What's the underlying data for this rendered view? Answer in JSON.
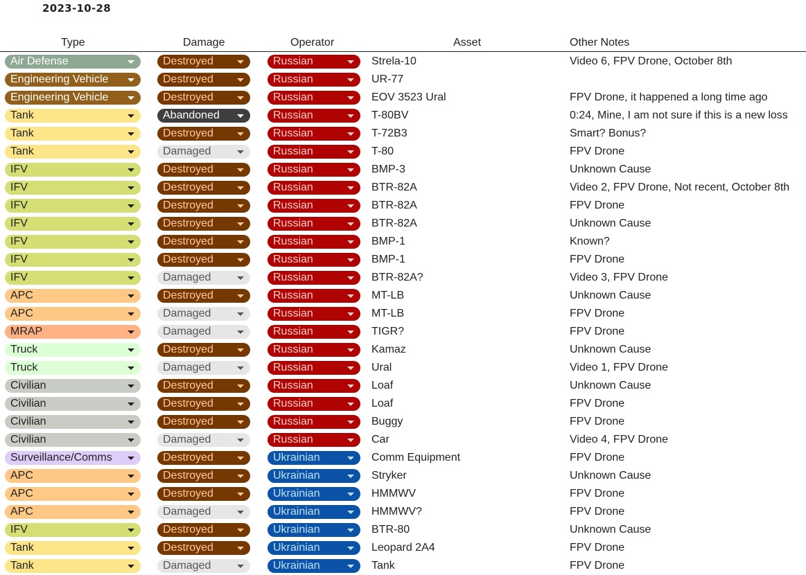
{
  "date": "2023-10-28",
  "headers": {
    "type": "Type",
    "damage": "Damage",
    "operator": "Operator",
    "asset": "Asset",
    "notes": "Other Notes"
  },
  "colors": {
    "type": {
      "Air Defense": [
        "#8fa893",
        "#ffffff"
      ],
      "Engineering Vehicle": [
        "#93601b",
        "#ffffff"
      ],
      "Tank": [
        "#fde68a",
        "#222222"
      ],
      "IFV": [
        "#d5de72",
        "#222222"
      ],
      "APC": [
        "#ffc985",
        "#222222"
      ],
      "MRAP": [
        "#ffb283",
        "#222222"
      ],
      "Truck": [
        "#dcffd6",
        "#222222"
      ],
      "Civilian": [
        "#c9ccc4",
        "#222222"
      ],
      "Surveillance/Comms": [
        "#dfcdf9",
        "#222222"
      ]
    },
    "damage": {
      "Destroyed": [
        "#753800",
        "#ffc8a3"
      ],
      "Abandoned": [
        "#3e3e3e",
        "#ffffff"
      ],
      "Damaged": [
        "#e6e6e6",
        "#555555"
      ]
    },
    "operator": {
      "Russian": [
        "#b10202",
        "#ffcfc9"
      ],
      "Ukrainian": [
        "#0a53a8",
        "#bfe1f6"
      ]
    }
  },
  "dropdown_icon": "triangle-down-icon",
  "rows": [
    {
      "type": "Air Defense",
      "damage": "Destroyed",
      "operator": "Russian",
      "asset": "Strela-10",
      "notes": "Video 6, FPV Drone, October 8th"
    },
    {
      "type": "Engineering Vehicle",
      "damage": "Destroyed",
      "operator": "Russian",
      "asset": "UR-77",
      "notes": ""
    },
    {
      "type": "Engineering Vehicle",
      "damage": "Destroyed",
      "operator": "Russian",
      "asset": "EOV 3523 Ural",
      "notes": "FPV Drone, it happened a long time ago"
    },
    {
      "type": "Tank",
      "damage": "Abandoned",
      "operator": "Russian",
      "asset": "T-80BV",
      "notes": "0:24, Mine, I am not sure if this is a new loss"
    },
    {
      "type": "Tank",
      "damage": "Destroyed",
      "operator": "Russian",
      "asset": "T-72B3",
      "notes": "Smart? Bonus?"
    },
    {
      "type": "Tank",
      "damage": "Damaged",
      "operator": "Russian",
      "asset": "T-80",
      "notes": "FPV Drone"
    },
    {
      "type": "IFV",
      "damage": "Destroyed",
      "operator": "Russian",
      "asset": "BMP-3",
      "notes": "Unknown Cause"
    },
    {
      "type": "IFV",
      "damage": "Destroyed",
      "operator": "Russian",
      "asset": "BTR-82A",
      "notes": "Video 2, FPV Drone, Not recent, October 8th"
    },
    {
      "type": "IFV",
      "damage": "Destroyed",
      "operator": "Russian",
      "asset": "BTR-82A",
      "notes": "FPV Drone"
    },
    {
      "type": "IFV",
      "damage": "Destroyed",
      "operator": "Russian",
      "asset": "BTR-82A",
      "notes": "Unknown Cause"
    },
    {
      "type": "IFV",
      "damage": "Destroyed",
      "operator": "Russian",
      "asset": "BMP-1",
      "notes": "Known?"
    },
    {
      "type": "IFV",
      "damage": "Destroyed",
      "operator": "Russian",
      "asset": "BMP-1",
      "notes": "FPV Drone"
    },
    {
      "type": "IFV",
      "damage": "Damaged",
      "operator": "Russian",
      "asset": "BTR-82A?",
      "notes": "Video 3, FPV Drone"
    },
    {
      "type": "APC",
      "damage": "Destroyed",
      "operator": "Russian",
      "asset": "MT-LB",
      "notes": "Unknown Cause"
    },
    {
      "type": "APC",
      "damage": "Damaged",
      "operator": "Russian",
      "asset": "MT-LB",
      "notes": "FPV Drone"
    },
    {
      "type": "MRAP",
      "damage": "Damaged",
      "operator": "Russian",
      "asset": "TIGR?",
      "notes": "FPV Drone"
    },
    {
      "type": "Truck",
      "damage": "Destroyed",
      "operator": "Russian",
      "asset": "Kamaz",
      "notes": "Unknown Cause"
    },
    {
      "type": "Truck",
      "damage": "Damaged",
      "operator": "Russian",
      "asset": "Ural",
      "notes": "Video 1, FPV Drone"
    },
    {
      "type": "Civilian",
      "damage": "Destroyed",
      "operator": "Russian",
      "asset": "Loaf",
      "notes": "Unknown Cause"
    },
    {
      "type": "Civilian",
      "damage": "Destroyed",
      "operator": "Russian",
      "asset": "Loaf",
      "notes": "FPV Drone"
    },
    {
      "type": "Civilian",
      "damage": "Destroyed",
      "operator": "Russian",
      "asset": "Buggy",
      "notes": "FPV Drone"
    },
    {
      "type": "Civilian",
      "damage": "Damaged",
      "operator": "Russian",
      "asset": "Car",
      "notes": "Video 4, FPV Drone"
    },
    {
      "type": "Surveillance/Comms",
      "damage": "Destroyed",
      "operator": "Ukrainian",
      "asset": "Comm Equipment",
      "notes": "FPV Drone"
    },
    {
      "type": "APC",
      "damage": "Destroyed",
      "operator": "Ukrainian",
      "asset": "Stryker",
      "notes": "Unknown Cause"
    },
    {
      "type": "APC",
      "damage": "Destroyed",
      "operator": "Ukrainian",
      "asset": "HMMWV",
      "notes": "FPV Drone"
    },
    {
      "type": "APC",
      "damage": "Damaged",
      "operator": "Ukrainian",
      "asset": "HMMWV?",
      "notes": "FPV Drone"
    },
    {
      "type": "IFV",
      "damage": "Destroyed",
      "operator": "Ukrainian",
      "asset": "BTR-80",
      "notes": "Unknown Cause"
    },
    {
      "type": "Tank",
      "damage": "Destroyed",
      "operator": "Ukrainian",
      "asset": "Leopard 2A4",
      "notes": "FPV Drone"
    },
    {
      "type": "Tank",
      "damage": "Damaged",
      "operator": "Ukrainian",
      "asset": "Tank",
      "notes": "FPV Drone"
    }
  ]
}
